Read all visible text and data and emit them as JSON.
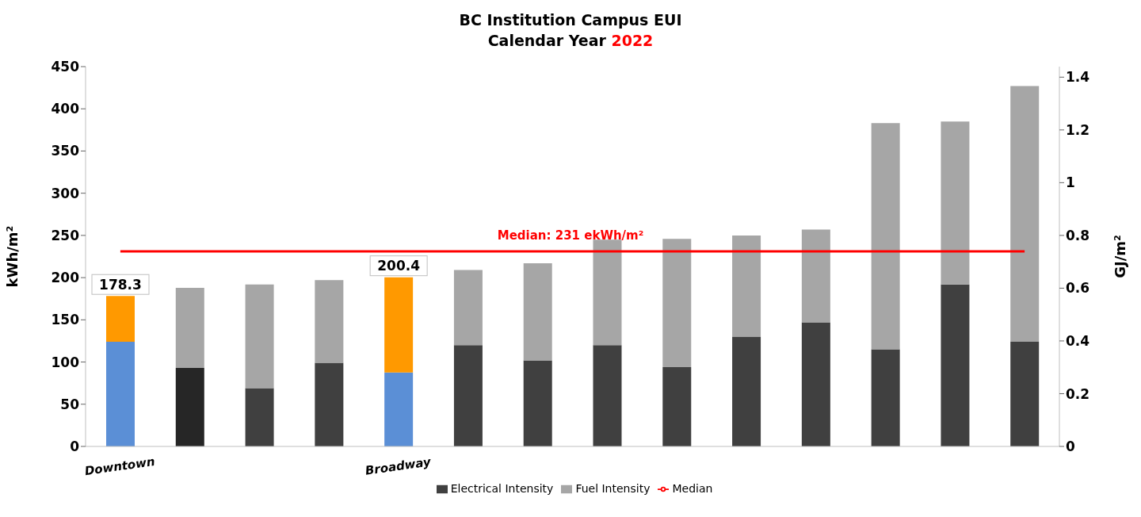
{
  "chart_data": {
    "type": "bar",
    "title": "BC Institution Campus EUI",
    "subtitle": "Calendar Year 2022",
    "ylabel": "kWh/m²",
    "y2label": "GJ/m²",
    "categories": [
      "Downtown",
      null,
      null,
      null,
      "Broadway",
      null,
      null,
      null,
      null,
      null,
      null,
      null,
      null,
      null
    ],
    "stacked": true,
    "series": [
      {
        "name": "Electrical Intensity",
        "color": "#404040",
        "colors": [
          "#5b8fd6",
          "#262626",
          "#404040",
          "#404040",
          "#5b8fd6",
          "#404040",
          "#404040",
          "#404040",
          "#404040",
          "#404040",
          "#404040",
          "#404040",
          "#404040",
          "#404040"
        ],
        "values": [
          124,
          93,
          69,
          99,
          87.5,
          120,
          102,
          120,
          94,
          130,
          147,
          115,
          192,
          124
        ]
      },
      {
        "name": "Fuel Intensity",
        "color": "#a6a6a6",
        "colors": [
          "#ff9900",
          "#a6a6a6",
          "#a6a6a6",
          "#a6a6a6",
          "#ff9900",
          "#a6a6a6",
          "#a6a6a6",
          "#a6a6a6",
          "#a6a6a6",
          "#a6a6a6",
          "#a6a6a6",
          "#a6a6a6",
          "#a6a6a6",
          "#a6a6a6"
        ],
        "values": [
          54.3,
          95,
          123,
          98,
          112.9,
          89,
          115,
          125,
          152,
          120,
          110,
          268,
          193,
          303
        ]
      },
      {
        "name": "Median",
        "type": "line",
        "color": "#ff0000",
        "values": [
          231,
          231,
          231,
          231,
          231,
          231,
          231,
          231,
          231,
          231,
          231,
          231,
          231,
          231
        ]
      }
    ],
    "totals": [
      "178.3",
      null,
      null,
      null,
      "200.4",
      null,
      null,
      null,
      null,
      null,
      null,
      null,
      null,
      null
    ],
    "annotations": [
      {
        "text": "Median: 231 ekWh/m²",
        "y": 231
      }
    ],
    "ylim": [
      0,
      450
    ],
    "yticks": [
      0,
      50,
      100,
      150,
      200,
      250,
      300,
      350,
      400,
      450
    ],
    "y2lim": [
      0,
      1.44
    ],
    "y2ticks": [
      0,
      0.2,
      0.4,
      0.6,
      0.8,
      1,
      1.2,
      1.4
    ],
    "grid": false,
    "legend": "bottom"
  }
}
